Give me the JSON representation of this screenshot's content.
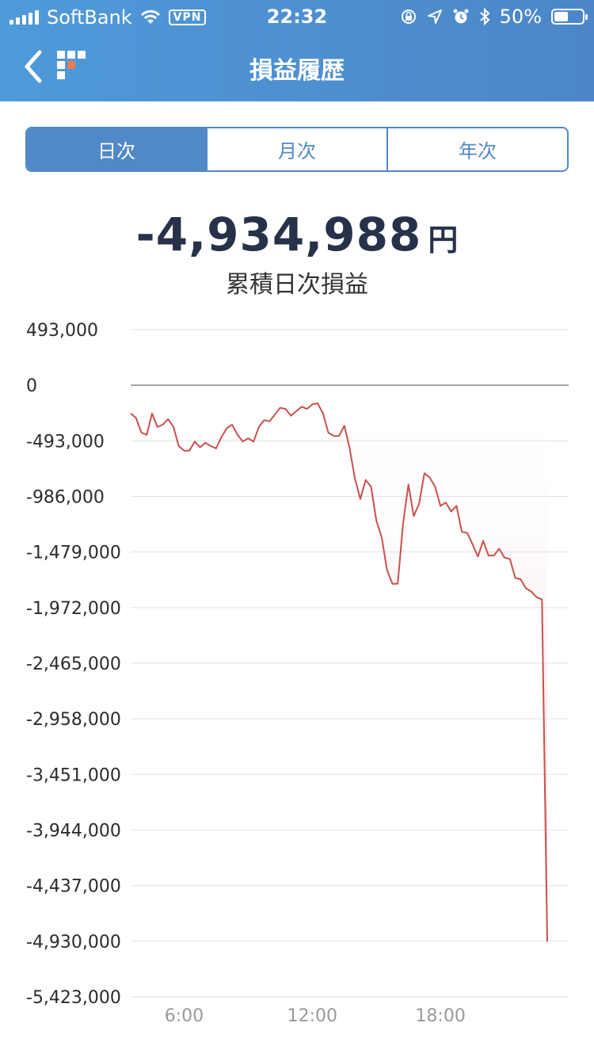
{
  "status_bar": {
    "carrier": "SoftBank",
    "vpn": "VPN",
    "time": "22:32",
    "battery_percent": "50%",
    "battery_level": 0.5
  },
  "nav": {
    "title": "損益履歴",
    "back_icon": "chevron-left-icon",
    "logo_icon": "app-logo-icon"
  },
  "tabs": [
    {
      "label": "日次",
      "active": true
    },
    {
      "label": "月次",
      "active": false
    },
    {
      "label": "年次",
      "active": false
    }
  ],
  "summary": {
    "amount": "-4,934,988",
    "unit": "円",
    "label": "累積日次損益"
  },
  "colors": {
    "header": "#4c8fcf",
    "accent": "#5089c6",
    "line": "#c9514d"
  },
  "chart_data": {
    "type": "area",
    "ylim": [
      -5423000,
      493000
    ],
    "xlim": [
      3.5,
      24
    ],
    "y_ticks": [
      {
        "value": 493000,
        "label": "493,000"
      },
      {
        "value": 0,
        "label": "0"
      },
      {
        "value": -493000,
        "label": "-493,000"
      },
      {
        "value": -986000,
        "label": "-986,000"
      },
      {
        "value": -1479000,
        "label": "-1,479,000"
      },
      {
        "value": -1972000,
        "label": "-1,972,000"
      },
      {
        "value": -2465000,
        "label": "-2,465,000"
      },
      {
        "value": -2958000,
        "label": "-2,958,000"
      },
      {
        "value": -3451000,
        "label": "-3,451,000"
      },
      {
        "value": -3944000,
        "label": "-3,944,000"
      },
      {
        "value": -4437000,
        "label": "-4,437,000"
      },
      {
        "value": -4930000,
        "label": "-4,930,000"
      },
      {
        "value": -5423000,
        "label": "-5,423,000"
      }
    ],
    "x_ticks": [
      {
        "value": 6,
        "label": "6:00"
      },
      {
        "value": 12,
        "label": "12:00"
      },
      {
        "value": 18,
        "label": "18:00"
      }
    ],
    "grid": true,
    "series": [
      {
        "x": [
          3.5,
          3.75,
          4.0,
          4.25,
          4.5,
          4.75,
          5.0,
          5.25,
          5.5,
          5.75,
          6.0,
          6.25,
          6.5,
          6.75,
          7.0,
          7.25,
          7.5,
          7.75,
          8.0,
          8.25,
          8.5,
          8.75,
          9.0,
          9.25,
          9.5,
          9.75,
          10.0,
          10.25,
          10.5,
          10.75,
          11.0,
          11.25,
          11.5,
          11.75,
          12.0,
          12.25,
          12.5,
          12.75,
          13.0,
          13.25,
          13.5,
          13.75,
          14.0,
          14.25,
          14.5,
          14.75,
          15.0,
          15.25,
          15.5,
          15.75,
          16.0,
          16.25,
          16.5,
          16.75,
          17.0,
          17.25,
          17.5,
          17.75,
          18.0,
          18.25,
          18.5,
          18.75,
          19.0,
          19.25,
          19.5,
          19.75,
          20.0,
          20.25,
          20.5,
          20.75,
          21.0,
          21.25,
          21.5,
          21.75,
          22.0,
          22.25,
          22.5,
          22.75,
          23.0
        ],
        "values": [
          -250000,
          -290000,
          -420000,
          -440000,
          -250000,
          -370000,
          -350000,
          -300000,
          -370000,
          -540000,
          -580000,
          -580000,
          -500000,
          -550000,
          -510000,
          -540000,
          -560000,
          -460000,
          -380000,
          -350000,
          -440000,
          -500000,
          -470000,
          -500000,
          -370000,
          -310000,
          -320000,
          -260000,
          -200000,
          -210000,
          -270000,
          -230000,
          -190000,
          -210000,
          -170000,
          -160000,
          -250000,
          -420000,
          -450000,
          -450000,
          -360000,
          -560000,
          -830000,
          -1010000,
          -840000,
          -900000,
          -1200000,
          -1350000,
          -1640000,
          -1760000,
          -1760000,
          -1230000,
          -880000,
          -1160000,
          -1050000,
          -780000,
          -820000,
          -900000,
          -1070000,
          -1040000,
          -1120000,
          -1070000,
          -1300000,
          -1310000,
          -1410000,
          -1520000,
          -1380000,
          -1510000,
          -1510000,
          -1450000,
          -1530000,
          -1540000,
          -1710000,
          -1720000,
          -1800000,
          -1830000,
          -1880000,
          -1900000,
          -4934988
        ]
      }
    ]
  }
}
